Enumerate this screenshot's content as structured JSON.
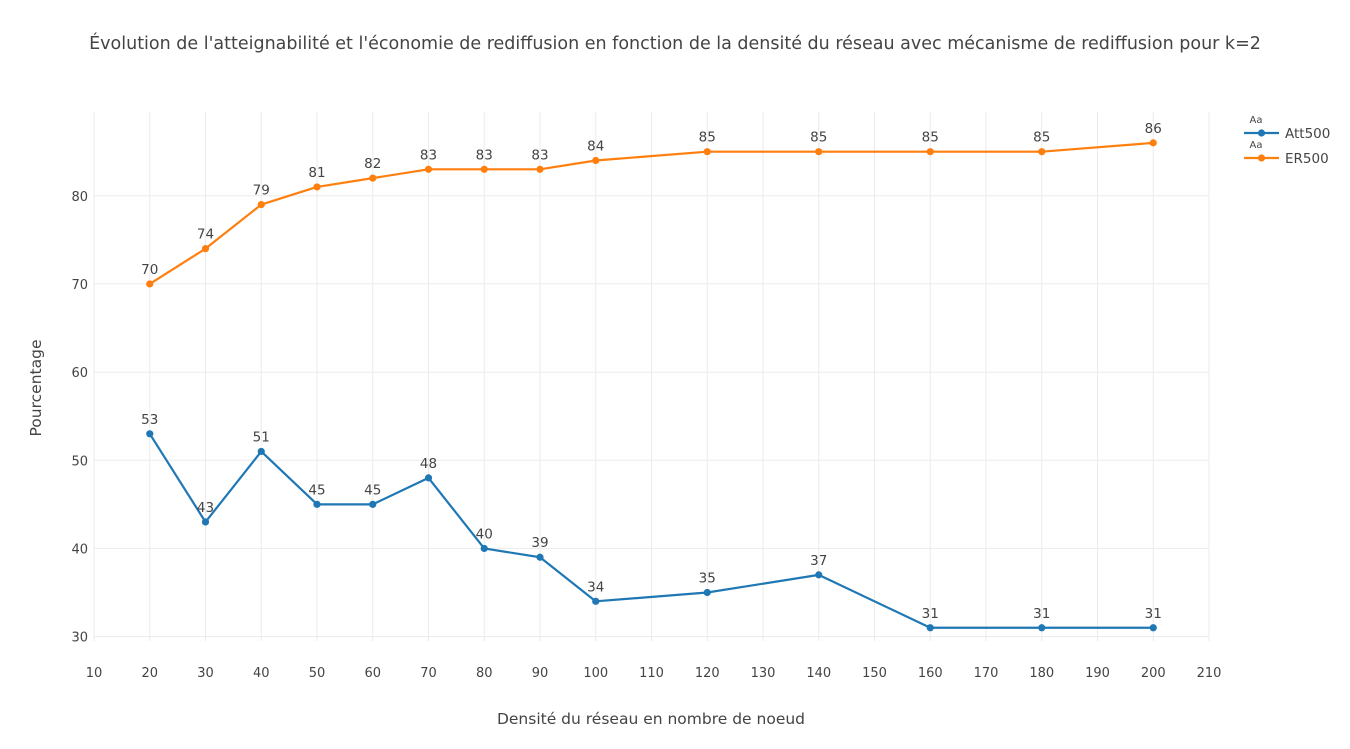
{
  "chart_data": {
    "type": "line",
    "title": "Évolution de l'atteignabilité et l'économie de rediffusion en fonction de la densité du réseau avec mécanisme de rediffusion pour k=2",
    "xlabel": "Densité du réseau en nombre de noeud",
    "ylabel": "Pourcentage",
    "x": [
      20,
      30,
      40,
      50,
      60,
      70,
      80,
      90,
      100,
      120,
      140,
      160,
      180,
      200
    ],
    "xlim": [
      10,
      210
    ],
    "ylim": [
      29.5,
      89.5
    ],
    "xticks": [
      10,
      20,
      30,
      40,
      50,
      60,
      70,
      80,
      90,
      100,
      110,
      120,
      130,
      140,
      150,
      160,
      170,
      180,
      190,
      200,
      210
    ],
    "yticks": [
      30,
      40,
      50,
      60,
      70,
      80
    ],
    "grid": true,
    "legend_position": "top-right",
    "legend_marker_text": "Aa",
    "series": [
      {
        "name": "Att500",
        "color": "#1f77b4",
        "values": [
          53,
          43,
          51,
          45,
          45,
          48,
          40,
          39,
          34,
          35,
          37,
          31,
          31,
          31
        ]
      },
      {
        "name": "ER500",
        "color": "#ff7f0e",
        "values": [
          70,
          74,
          79,
          81,
          82,
          83,
          83,
          83,
          84,
          85,
          85,
          85,
          85,
          86
        ]
      }
    ]
  }
}
